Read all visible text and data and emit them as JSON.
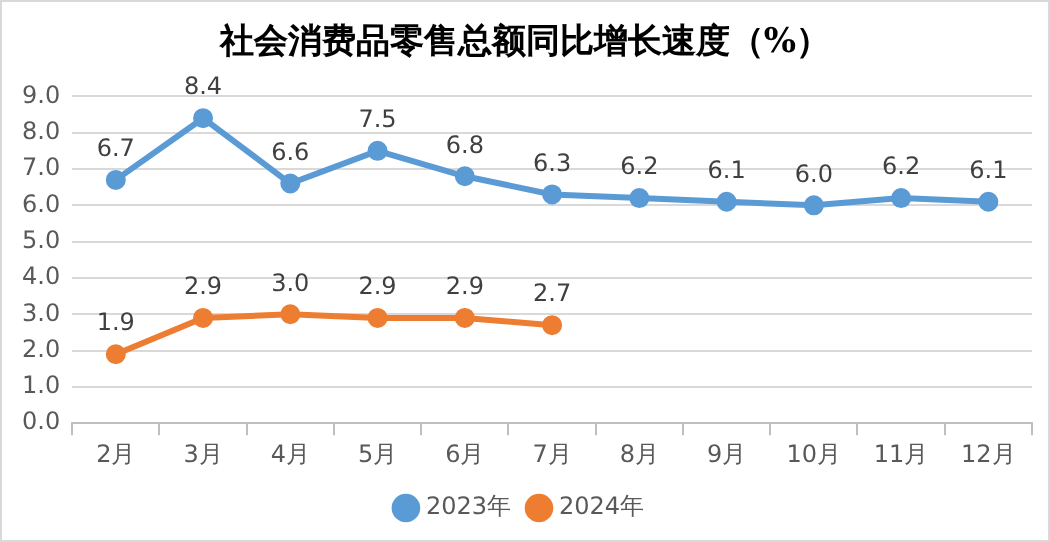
{
  "chart_data": {
    "type": "line",
    "title": "社会消费品零售总额同比增长速度（%）",
    "categories": [
      "2月",
      "3月",
      "4月",
      "5月",
      "6月",
      "7月",
      "8月",
      "9月",
      "10月",
      "11月",
      "12月"
    ],
    "series": [
      {
        "name": "2023年",
        "color": "#5b9bd5",
        "values": [
          6.7,
          8.4,
          6.6,
          7.5,
          6.8,
          6.3,
          6.2,
          6.1,
          6.0,
          6.2,
          6.1
        ],
        "value_labels": [
          "6.7",
          "8.4",
          "6.6",
          "7.5",
          "6.8",
          "6.3",
          "6.2",
          "6.1",
          "6.0",
          "6.2",
          "6.1"
        ]
      },
      {
        "name": "2024年",
        "color": "#ed7d31",
        "values": [
          1.9,
          2.9,
          3.0,
          2.9,
          2.9,
          2.7,
          null,
          null,
          null,
          null,
          null
        ],
        "value_labels": [
          "1.9",
          "2.9",
          "3.0",
          "2.9",
          "2.9",
          "2.7",
          null,
          null,
          null,
          null,
          null
        ]
      }
    ],
    "ylim": [
      0,
      9
    ],
    "yticks": [
      {
        "value": 0,
        "label": "0.0"
      },
      {
        "value": 1,
        "label": "1.0"
      },
      {
        "value": 2,
        "label": "2.0"
      },
      {
        "value": 3,
        "label": "3.0"
      },
      {
        "value": 4,
        "label": "4.0"
      },
      {
        "value": 5,
        "label": "5.0"
      },
      {
        "value": 6,
        "label": "6.0"
      },
      {
        "value": 7,
        "label": "7.0"
      },
      {
        "value": 8,
        "label": "8.0"
      },
      {
        "value": 9,
        "label": "9.0"
      }
    ],
    "grid": "y",
    "legend": "bottom",
    "marker": "circle",
    "line_style": "solid"
  }
}
